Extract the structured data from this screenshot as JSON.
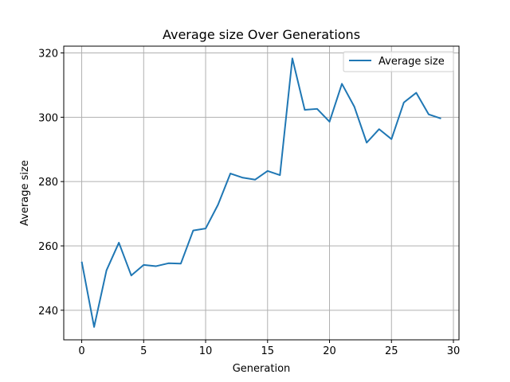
{
  "chart_data": {
    "type": "line",
    "title": "Average size Over Generations",
    "xlabel": "Generation",
    "ylabel": "Average size",
    "xlim": [
      -1.45,
      30.45
    ],
    "ylim": [
      230.8,
      322.1
    ],
    "xticks": [
      0,
      5,
      10,
      15,
      20,
      25,
      30
    ],
    "yticks": [
      240,
      260,
      280,
      300,
      320
    ],
    "grid": true,
    "legend": "top-right",
    "series": [
      {
        "name": "Average size",
        "color": "#1f77b4",
        "x": [
          0,
          1,
          2,
          3,
          4,
          5,
          6,
          7,
          8,
          9,
          10,
          11,
          12,
          13,
          14,
          15,
          16,
          17,
          18,
          19,
          20,
          21,
          22,
          23,
          24,
          25,
          26,
          27,
          28,
          29
        ],
        "y": [
          255.1,
          234.8,
          252.4,
          261.0,
          250.8,
          254.1,
          253.7,
          254.6,
          254.5,
          264.8,
          265.4,
          272.8,
          282.5,
          281.2,
          280.6,
          283.3,
          282.0,
          318.3,
          302.3,
          302.6,
          298.6,
          310.4,
          303.3,
          292.1,
          296.3,
          293.2,
          304.6,
          307.6,
          300.9,
          299.6
        ]
      }
    ]
  }
}
